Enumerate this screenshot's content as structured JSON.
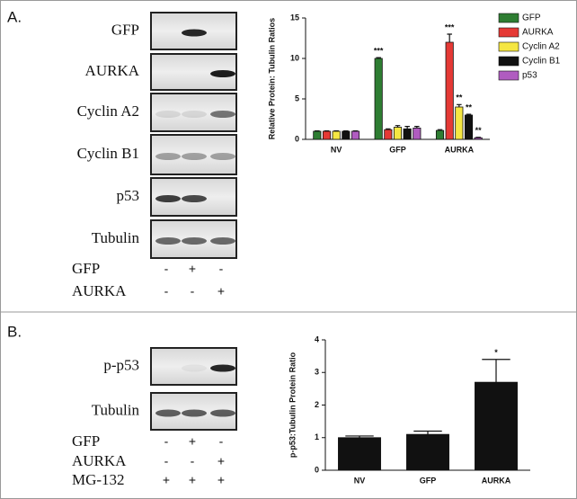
{
  "panel_a": {
    "label": "A.",
    "blot_labels": [
      "GFP",
      "AURKA",
      "Cyclin A2",
      "Cyclin B1",
      "p53",
      "Tubulin"
    ],
    "conditions": [
      {
        "name": "GFP",
        "marks": [
          "-",
          "+",
          "-"
        ]
      },
      {
        "name": "AURKA",
        "marks": [
          "-",
          "-",
          "+"
        ]
      }
    ]
  },
  "panel_b": {
    "label": "B.",
    "blot_labels": [
      "p-p53",
      "Tubulin"
    ],
    "conditions": [
      {
        "name": "GFP",
        "marks": [
          "-",
          "+",
          "-"
        ]
      },
      {
        "name": "AURKA",
        "marks": [
          "-",
          "-",
          "+"
        ]
      },
      {
        "name": "MG-132",
        "marks": [
          "+",
          "+",
          "+"
        ]
      }
    ]
  },
  "chart_data": [
    {
      "type": "bar",
      "y_label": "Relative Protein: Tubulin Ratios",
      "categories": [
        "NV",
        "GFP",
        "AURKA"
      ],
      "ylim": [
        0,
        15
      ],
      "yticks": [
        0,
        5,
        10,
        15
      ],
      "series": [
        {
          "name": "GFP",
          "color": "#2e7d32",
          "values": [
            1,
            10,
            1.1
          ],
          "errors": [
            0.05,
            0.1,
            0.1
          ],
          "significance": [
            null,
            "***",
            null
          ]
        },
        {
          "name": "AURKA",
          "color": "#e53935",
          "values": [
            1,
            1.2,
            12
          ],
          "errors": [
            0.05,
            0.1,
            1
          ],
          "significance": [
            null,
            null,
            "***"
          ]
        },
        {
          "name": "Cyclin A2",
          "color": "#f5e642",
          "values": [
            1,
            1.5,
            4
          ],
          "errors": [
            0.05,
            0.2,
            0.3
          ],
          "significance": [
            null,
            null,
            "**"
          ]
        },
        {
          "name": "Cyclin B1",
          "color": "#111111",
          "values": [
            1,
            1.3,
            3
          ],
          "errors": [
            0.05,
            0.3,
            0.1
          ],
          "significance": [
            null,
            null,
            "**"
          ]
        },
        {
          "name": "p53",
          "color": "#b05cc0",
          "values": [
            1,
            1.4,
            0.2
          ],
          "errors": [
            0.05,
            0.2,
            0.05
          ],
          "significance": [
            null,
            null,
            "**"
          ]
        }
      ]
    },
    {
      "type": "bar",
      "y_label": "p-p53:Tubulin Protein Ratio",
      "categories": [
        "NV",
        "GFP",
        "AURKA"
      ],
      "ylim": [
        0,
        4
      ],
      "yticks": [
        0,
        1,
        2,
        3,
        4
      ],
      "color": "#111111",
      "values": [
        1,
        1.1,
        2.7
      ],
      "errors": [
        0.05,
        0.1,
        0.7
      ],
      "significance": [
        null,
        null,
        "*"
      ]
    }
  ]
}
